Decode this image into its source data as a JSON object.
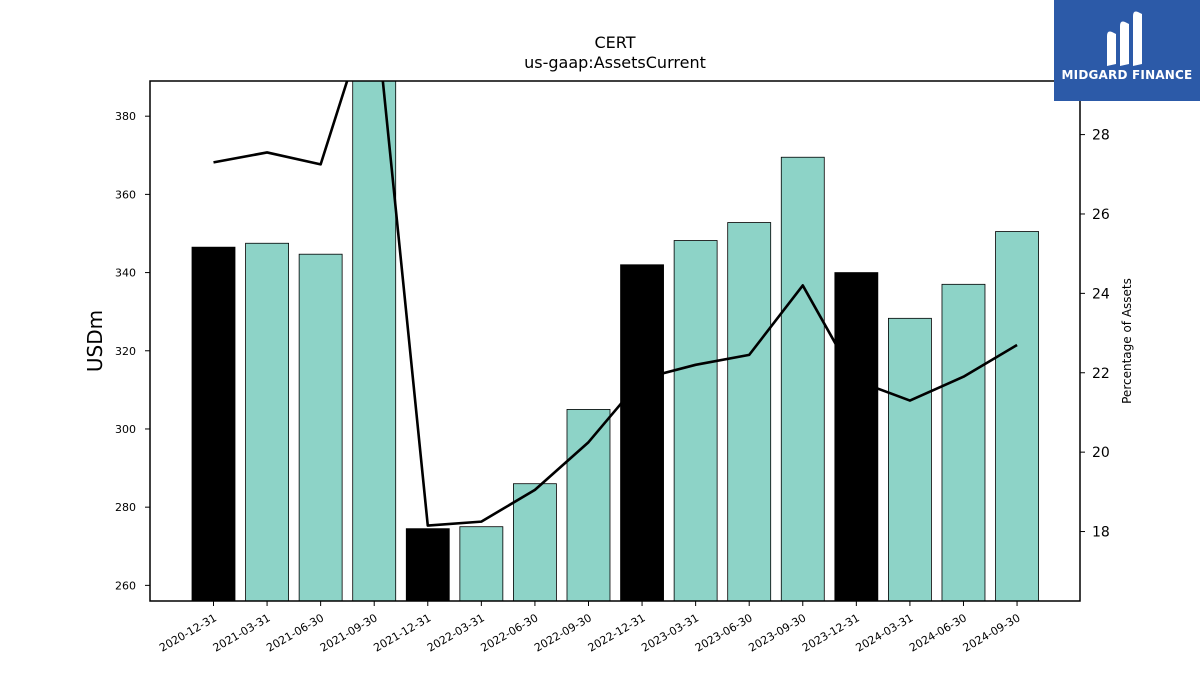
{
  "brand": {
    "name": "MIDGARD FINANCE",
    "logo_icon": "midgard-m-logo-icon",
    "color": "#2c5aa8"
  },
  "chart_data": {
    "type": "bar",
    "title": "CERT",
    "subtitle": "us-gaap:AssetsCurrent",
    "ylabel": "USDm",
    "y2label": "Percentage of Assets",
    "categories": [
      "2020-12-31",
      "2021-03-31",
      "2021-06-30",
      "2021-09-30",
      "2021-12-31",
      "2022-03-31",
      "2022-06-30",
      "2022-09-30",
      "2022-12-31",
      "2023-03-31",
      "2023-06-30",
      "2023-09-30",
      "2023-12-31",
      "2024-03-31",
      "2024-06-30",
      "2024-09-30"
    ],
    "series": [
      {
        "type": "bar",
        "values": [
          346.5,
          347.5,
          344.7,
          389.5,
          274.5,
          275.0,
          286.0,
          305.0,
          342.0,
          348.2,
          352.8,
          369.5,
          340.0,
          328.3,
          337.0,
          350.5
        ],
        "highlight_color": "#000000",
        "color": "#8dd3c7",
        "highlighted": [
          true,
          false,
          false,
          false,
          true,
          false,
          false,
          false,
          true,
          false,
          false,
          false,
          true,
          false,
          false,
          false
        ]
      },
      {
        "type": "line",
        "axis": "right",
        "color": "#000000",
        "values": [
          27.3,
          27.55,
          27.25,
          31.5,
          18.15,
          18.25,
          19.05,
          20.25,
          21.85,
          22.2,
          22.45,
          24.2,
          21.8,
          21.3,
          21.9,
          22.7
        ]
      }
    ],
    "ylim": [
      256,
      389
    ],
    "yticks": [
      260,
      280,
      300,
      320,
      340,
      360,
      380
    ],
    "y2lim": [
      16.25,
      29.35
    ],
    "y2ticks": [
      18,
      20,
      22,
      24,
      26,
      28
    ],
    "grid": false
  }
}
